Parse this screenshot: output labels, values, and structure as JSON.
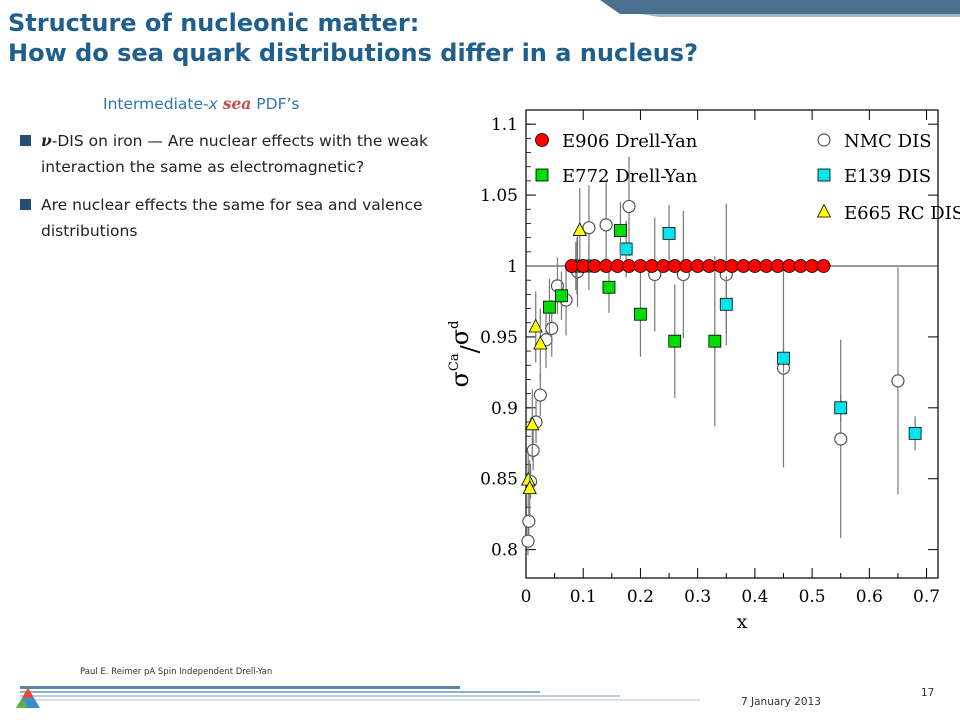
{
  "slide": {
    "title_line1": "Structure of nucleonic matter:",
    "title_line2": "How do sea quark distributions differ in a nucleus?",
    "subtitle_pre": "Intermediate-",
    "subtitle_x": "x",
    "subtitle_sea": "sea",
    "subtitle_post": " PDF’s",
    "bullets": [
      {
        "nu": "ν",
        "text": "-DIS  on iron — Are nuclear effects with the weak interaction the same as electromagnetic?"
      },
      {
        "text": "Are nuclear effects the same for sea and valence distributions"
      }
    ],
    "footer_text": "Paul E. Reimer pA Spin Independent Drell-Yan",
    "footer_date": "7 January 2013",
    "page_number": "17"
  },
  "chart_data": {
    "type": "scatter",
    "xlabel": "x",
    "ylabel_num": "σ",
    "ylabel_num_sup": "Ca",
    "ylabel_sep": "/",
    "ylabel_den": "σ",
    "ylabel_den_sup": "d",
    "xlim": [
      0,
      0.72
    ],
    "ylim": [
      0.78,
      1.11
    ],
    "x_ticks": [
      "0",
      "0.1",
      "0.2",
      "0.3",
      "0.4",
      "0.5",
      "0.6",
      "0.7"
    ],
    "y_ticks": [
      "0.8",
      "0.85",
      "0.9",
      "0.95",
      "1",
      "1.05",
      "1.1"
    ],
    "reference_line": 1.0,
    "legend_placement": "top",
    "series": [
      {
        "name": "E906 Drell-Yan",
        "marker": "circle-filled",
        "color": "#ff0000",
        "points": [
          {
            "x": 0.08,
            "y": 1.0
          },
          {
            "x": 0.1,
            "y": 1.0
          },
          {
            "x": 0.12,
            "y": 1.0
          },
          {
            "x": 0.14,
            "y": 1.0
          },
          {
            "x": 0.16,
            "y": 1.0
          },
          {
            "x": 0.18,
            "y": 1.0
          },
          {
            "x": 0.2,
            "y": 1.0
          },
          {
            "x": 0.22,
            "y": 1.0
          },
          {
            "x": 0.24,
            "y": 1.0
          },
          {
            "x": 0.26,
            "y": 1.0
          },
          {
            "x": 0.28,
            "y": 1.0
          },
          {
            "x": 0.3,
            "y": 1.0
          },
          {
            "x": 0.32,
            "y": 1.0
          },
          {
            "x": 0.34,
            "y": 1.0
          },
          {
            "x": 0.36,
            "y": 1.0
          },
          {
            "x": 0.38,
            "y": 1.0
          },
          {
            "x": 0.4,
            "y": 1.0
          },
          {
            "x": 0.42,
            "y": 1.0
          },
          {
            "x": 0.44,
            "y": 1.0
          },
          {
            "x": 0.46,
            "y": 1.0
          },
          {
            "x": 0.48,
            "y": 1.0
          },
          {
            "x": 0.5,
            "y": 1.0
          },
          {
            "x": 0.52,
            "y": 1.0
          }
        ]
      },
      {
        "name": "E772 Drell-Yan",
        "marker": "square-filled",
        "color": "#00dd00",
        "points": [
          {
            "x": 0.041,
            "y": 0.971,
            "err": 0.02
          },
          {
            "x": 0.062,
            "y": 0.979,
            "err": 0.017
          },
          {
            "x": 0.087,
            "y": 1.0,
            "err": 0.017
          },
          {
            "x": 0.11,
            "y": 1.0,
            "err": 0.017
          },
          {
            "x": 0.145,
            "y": 0.985,
            "err": 0.018
          },
          {
            "x": 0.165,
            "y": 1.025,
            "err": 0.02
          },
          {
            "x": 0.2,
            "y": 0.966,
            "err": 0.03
          },
          {
            "x": 0.26,
            "y": 0.947,
            "err": 0.04
          },
          {
            "x": 0.33,
            "y": 0.947,
            "err": 0.06
          }
        ]
      },
      {
        "name": "NMC DIS",
        "marker": "circle-open",
        "color": "#555555",
        "points": [
          {
            "x": 0.0035,
            "y": 0.806,
            "err": 0.01
          },
          {
            "x": 0.005,
            "y": 0.82,
            "err": 0.01
          },
          {
            "x": 0.008,
            "y": 0.848,
            "err": 0.012
          },
          {
            "x": 0.0125,
            "y": 0.87,
            "err": 0.014
          },
          {
            "x": 0.0175,
            "y": 0.89,
            "err": 0.015
          },
          {
            "x": 0.025,
            "y": 0.909,
            "err": 0.015
          },
          {
            "x": 0.035,
            "y": 0.948,
            "err": 0.02
          },
          {
            "x": 0.045,
            "y": 0.956,
            "err": 0.02
          },
          {
            "x": 0.055,
            "y": 0.986,
            "err": 0.02
          },
          {
            "x": 0.07,
            "y": 0.976,
            "err": 0.025
          },
          {
            "x": 0.09,
            "y": 0.996,
            "err": 0.025
          },
          {
            "x": 0.11,
            "y": 1.027,
            "err": 0.03
          },
          {
            "x": 0.14,
            "y": 1.029,
            "err": 0.03
          },
          {
            "x": 0.18,
            "y": 1.042,
            "err": 0.035
          },
          {
            "x": 0.225,
            "y": 0.994,
            "err": 0.04
          },
          {
            "x": 0.275,
            "y": 0.994,
            "err": 0.045
          },
          {
            "x": 0.35,
            "y": 0.994,
            "err": 0.05
          },
          {
            "x": 0.45,
            "y": 0.928,
            "err": 0.07
          },
          {
            "x": 0.55,
            "y": 0.878,
            "err": 0.07
          },
          {
            "x": 0.65,
            "y": 0.919,
            "err": 0.08
          }
        ]
      },
      {
        "name": "E139 DIS",
        "marker": "square-filled",
        "color": "#00e5ee",
        "points": [
          {
            "x": 0.089,
            "y": 1.0,
            "err": 0.02
          },
          {
            "x": 0.175,
            "y": 1.012,
            "err": 0.02
          },
          {
            "x": 0.25,
            "y": 1.023,
            "err": 0.02
          },
          {
            "x": 0.35,
            "y": 0.973,
            "err": 0.02
          },
          {
            "x": 0.45,
            "y": 0.935,
            "err": 0.01
          },
          {
            "x": 0.55,
            "y": 0.9,
            "err": 0.01
          },
          {
            "x": 0.68,
            "y": 0.882,
            "err": 0.012
          }
        ]
      },
      {
        "name": "E665 RC DIS",
        "marker": "triangle-filled",
        "color": "#ffff00",
        "points": [
          {
            "x": 0.0039,
            "y": 0.849,
            "err": 0.02
          },
          {
            "x": 0.0065,
            "y": 0.843,
            "err": 0.02
          },
          {
            "x": 0.011,
            "y": 0.888,
            "err": 0.025
          },
          {
            "x": 0.017,
            "y": 0.957,
            "err": 0.025
          },
          {
            "x": 0.025,
            "y": 0.945,
            "err": 0.025
          },
          {
            "x": 0.094,
            "y": 1.025,
            "err": 0.03
          }
        ]
      }
    ]
  }
}
